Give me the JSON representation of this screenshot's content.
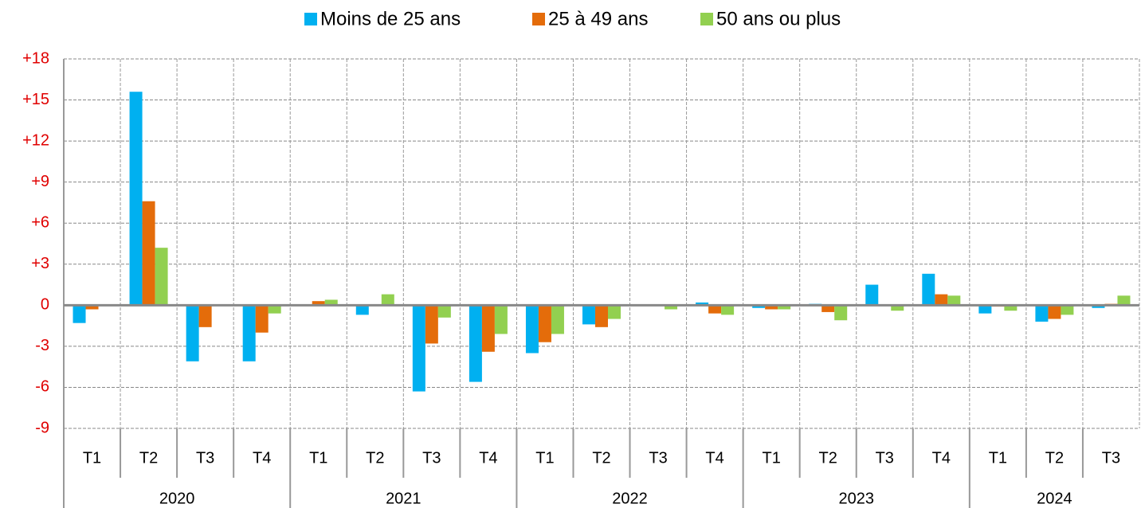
{
  "chart_data": {
    "type": "bar",
    "year_groups": [
      {
        "name": "2020",
        "quarters": [
          "T1",
          "T2",
          "T3",
          "T4"
        ]
      },
      {
        "name": "2021",
        "quarters": [
          "T1",
          "T2",
          "T3",
          "T4"
        ]
      },
      {
        "name": "2022",
        "quarters": [
          "T1",
          "T2",
          "T3",
          "T4"
        ]
      },
      {
        "name": "2023",
        "quarters": [
          "T1",
          "T2",
          "T3",
          "T4"
        ]
      },
      {
        "name": "2024",
        "quarters": [
          "T1",
          "T2",
          "T3"
        ]
      }
    ],
    "series": [
      {
        "name": "Moins de 25 ans",
        "color": "#00b0f0",
        "values": [
          -1.3,
          15.6,
          -4.1,
          -4.1,
          0,
          -0.7,
          -6.3,
          -5.6,
          -3.5,
          -1.4,
          0,
          0.2,
          -0.2,
          0.1,
          1.5,
          2.3,
          -0.6,
          -1.2,
          -0.2
        ]
      },
      {
        "name": "25 à 49 ans",
        "color": "#e46c0a",
        "values": [
          -0.3,
          7.6,
          -1.6,
          -2.0,
          0.3,
          0,
          -2.8,
          -3.4,
          -2.7,
          -1.6,
          0,
          -0.6,
          -0.3,
          -0.5,
          0,
          0.8,
          -0.1,
          -1.0,
          0.1
        ]
      },
      {
        "name": "50 ans ou plus",
        "color": "#92d050",
        "values": [
          0,
          4.2,
          0,
          -0.6,
          0.4,
          0.8,
          -0.9,
          -2.1,
          -2.1,
          -1.0,
          -0.3,
          -0.7,
          -0.3,
          -1.1,
          -0.4,
          0.7,
          -0.4,
          -0.7,
          0.7
        ]
      }
    ],
    "ylim": [
      -9,
      18
    ],
    "yticks": [
      -9,
      -6,
      -3,
      0,
      {
        "value": 3,
        "label": "+3"
      },
      {
        "value": 6,
        "label": "+6"
      },
      {
        "value": 9,
        "label": "+9"
      },
      {
        "value": 12,
        "label": "+12"
      },
      {
        "value": 15,
        "label": "+15"
      },
      {
        "value": 18,
        "label": "+18"
      }
    ],
    "grid": true,
    "legend": "top"
  }
}
